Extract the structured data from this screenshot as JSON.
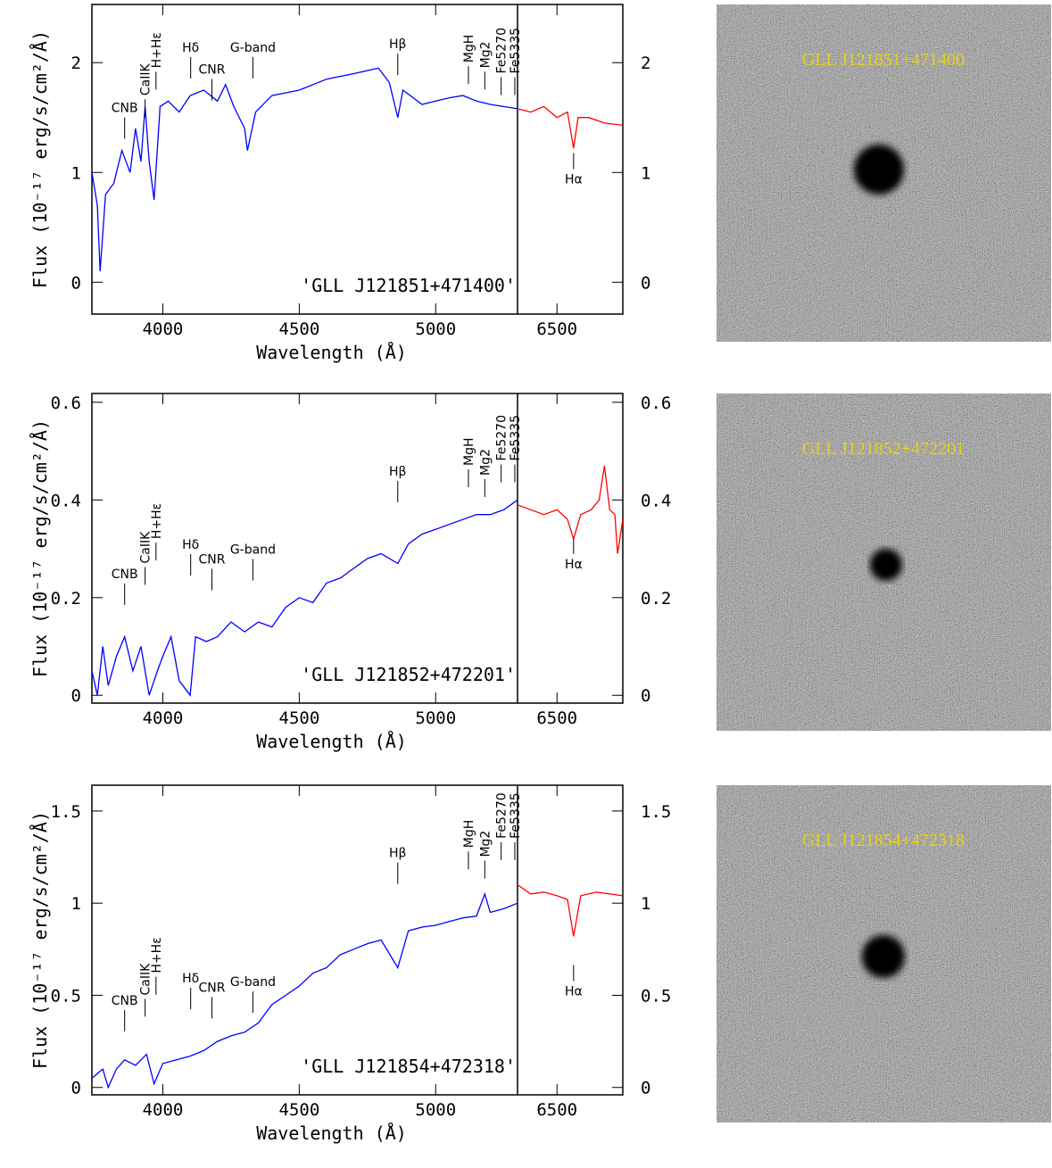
{
  "chart_data": [
    {
      "type": "line",
      "xlabel": "Wavelength (Å)",
      "ylabel": "Flux (10⁻¹⁷ erg/s/cm²/Å)",
      "label": "'GLL J121851+471400'",
      "image_title": "GLL J121851+471400",
      "xlim": [
        3740,
        5300
      ],
      "xticks": [
        4000,
        4500,
        5000
      ],
      "x2lim": [
        6350,
        6750
      ],
      "x2ticks": [
        6500
      ],
      "ylim": [
        -0.29,
        2.53
      ],
      "yticks": [
        0,
        1,
        2
      ],
      "series": [
        {
          "color": "#0000ff",
          "x": [
            3740,
            3760,
            3770,
            3790,
            3820,
            3850,
            3880,
            3900,
            3920,
            3935,
            3950,
            3968,
            3990,
            4020,
            4060,
            4100,
            4150,
            4200,
            4230,
            4260,
            4300,
            4310,
            4340,
            4400,
            4500,
            4600,
            4700,
            4790,
            4830,
            4861,
            4880,
            4950,
            5000,
            5050,
            5100,
            5150,
            5200,
            5300
          ],
          "values": [
            1.0,
            0.7,
            0.1,
            0.8,
            0.9,
            1.2,
            1.0,
            1.4,
            1.1,
            1.6,
            1.1,
            0.75,
            1.6,
            1.65,
            1.55,
            1.7,
            1.75,
            1.65,
            1.8,
            1.6,
            1.4,
            1.2,
            1.55,
            1.7,
            1.75,
            1.85,
            1.9,
            1.95,
            1.82,
            1.5,
            1.75,
            1.62,
            1.65,
            1.68,
            1.7,
            1.65,
            1.62,
            1.58
          ]
        },
        {
          "color": "#ff0000",
          "axis": "x2",
          "x": [
            6350,
            6400,
            6450,
            6500,
            6540,
            6563,
            6580,
            6620,
            6680,
            6750
          ],
          "values": [
            1.58,
            1.55,
            1.6,
            1.5,
            1.55,
            1.22,
            1.5,
            1.5,
            1.45,
            1.43
          ]
        }
      ],
      "annotations": [
        {
          "text": "CNB",
          "x": 3860,
          "y": 1.55
        },
        {
          "text": "CaIIK",
          "x": 3935,
          "y": 1.7,
          "vertical": true
        },
        {
          "text": "H+Hε",
          "x": 3975,
          "y": 1.95,
          "vertical": true
        },
        {
          "text": "Hδ",
          "x": 4102,
          "y": 2.1
        },
        {
          "text": "CNR",
          "x": 4180,
          "y": 1.9
        },
        {
          "text": "G-band",
          "x": 4330,
          "y": 2.1
        },
        {
          "text": "Hβ",
          "x": 4861,
          "y": 2.13
        },
        {
          "text": "MgH",
          "x": 5120,
          "y": 2.0,
          "vertical": true
        },
        {
          "text": "Mg2",
          "x": 5180,
          "y": 1.95,
          "vertical": true
        },
        {
          "text": "Fe5270",
          "x": 5240,
          "y": 1.9,
          "vertical": true
        },
        {
          "text": "Fe5335",
          "x": 5290,
          "y": 1.9,
          "vertical": true
        },
        {
          "text": "Hα",
          "x": 6563,
          "y": 0.9,
          "axis": "x2"
        }
      ]
    },
    {
      "type": "line",
      "xlabel": "Wavelength (Å)",
      "ylabel": "Flux (10⁻¹⁷ erg/s/cm²/Å)",
      "label": "'GLL J121852+472201'",
      "image_title": "GLL J121852+472201",
      "xlim": [
        3740,
        5300
      ],
      "xticks": [
        4000,
        4500,
        5000
      ],
      "x2lim": [
        6350,
        6750
      ],
      "x2ticks": [
        6500
      ],
      "ylim": [
        -0.016,
        0.618
      ],
      "yticks": [
        0,
        0.2,
        0.4,
        0.6
      ],
      "series": [
        {
          "color": "#0000ff",
          "x": [
            3740,
            3760,
            3780,
            3800,
            3830,
            3860,
            3890,
            3920,
            3950,
            3980,
            4000,
            4030,
            4060,
            4100,
            4120,
            4160,
            4200,
            4250,
            4300,
            4350,
            4400,
            4450,
            4500,
            4550,
            4600,
            4650,
            4700,
            4750,
            4800,
            4861,
            4900,
            4950,
            5000,
            5050,
            5100,
            5150,
            5200,
            5250,
            5300
          ],
          "values": [
            0.05,
            0.0,
            0.1,
            0.02,
            0.08,
            0.12,
            0.05,
            0.1,
            0.0,
            0.05,
            0.08,
            0.12,
            0.03,
            0.0,
            0.12,
            0.11,
            0.12,
            0.15,
            0.13,
            0.15,
            0.14,
            0.18,
            0.2,
            0.19,
            0.23,
            0.24,
            0.26,
            0.28,
            0.29,
            0.27,
            0.31,
            0.33,
            0.34,
            0.35,
            0.36,
            0.37,
            0.37,
            0.38,
            0.4
          ]
        },
        {
          "color": "#ff0000",
          "axis": "x2",
          "x": [
            6350,
            6400,
            6450,
            6500,
            6540,
            6563,
            6590,
            6630,
            6660,
            6680,
            6700,
            6720,
            6730,
            6750
          ],
          "values": [
            0.39,
            0.38,
            0.37,
            0.38,
            0.36,
            0.32,
            0.37,
            0.38,
            0.4,
            0.47,
            0.38,
            0.37,
            0.29,
            0.36
          ]
        }
      ],
      "annotations": [
        {
          "text": "CNB",
          "x": 3860,
          "y": 0.24
        },
        {
          "text": "CaIIK",
          "x": 3935,
          "y": 0.27,
          "vertical": true
        },
        {
          "text": "H+Hε",
          "x": 3975,
          "y": 0.32,
          "vertical": true
        },
        {
          "text": "Hδ",
          "x": 4102,
          "y": 0.3
        },
        {
          "text": "CNR",
          "x": 4180,
          "y": 0.27
        },
        {
          "text": "G-band",
          "x": 4330,
          "y": 0.29
        },
        {
          "text": "Hβ",
          "x": 4861,
          "y": 0.45
        },
        {
          "text": "MgH",
          "x": 5120,
          "y": 0.47,
          "vertical": true
        },
        {
          "text": "Mg2",
          "x": 5180,
          "y": 0.45,
          "vertical": true
        },
        {
          "text": "Fe5270",
          "x": 5240,
          "y": 0.48,
          "vertical": true
        },
        {
          "text": "Fe5335",
          "x": 5290,
          "y": 0.48,
          "vertical": true
        },
        {
          "text": "Hα",
          "x": 6563,
          "y": 0.26,
          "axis": "x2"
        }
      ]
    },
    {
      "type": "line",
      "xlabel": "Wavelength (Å)",
      "ylabel": "Flux (10⁻¹⁷ erg/s/cm²/Å)",
      "label": "'GLL J121854+472318'",
      "image_title": "GLL J121854+472318",
      "xlim": [
        3740,
        5300
      ],
      "xticks": [
        4000,
        4500,
        5000
      ],
      "x2lim": [
        6350,
        6750
      ],
      "x2ticks": [
        6500
      ],
      "ylim": [
        -0.04,
        1.64
      ],
      "yticks": [
        0,
        0.5,
        1,
        1.5
      ],
      "series": [
        {
          "color": "#0000ff",
          "x": [
            3740,
            3780,
            3800,
            3830,
            3860,
            3900,
            3940,
            3968,
            4000,
            4050,
            4100,
            4150,
            4200,
            4250,
            4300,
            4350,
            4400,
            4450,
            4500,
            4550,
            4600,
            4650,
            4700,
            4750,
            4800,
            4861,
            4900,
            4950,
            5000,
            5050,
            5100,
            5150,
            5180,
            5200,
            5250,
            5300
          ],
          "values": [
            0.05,
            0.1,
            0.0,
            0.1,
            0.15,
            0.12,
            0.18,
            0.02,
            0.13,
            0.15,
            0.17,
            0.2,
            0.25,
            0.28,
            0.3,
            0.35,
            0.45,
            0.5,
            0.55,
            0.62,
            0.65,
            0.72,
            0.75,
            0.78,
            0.8,
            0.65,
            0.85,
            0.87,
            0.88,
            0.9,
            0.92,
            0.93,
            1.05,
            0.95,
            0.97,
            1.0
          ]
        },
        {
          "color": "#ff0000",
          "axis": "x2",
          "x": [
            6350,
            6400,
            6450,
            6500,
            6540,
            6563,
            6590,
            6650,
            6700,
            6750
          ],
          "values": [
            1.1,
            1.05,
            1.06,
            1.04,
            1.02,
            0.82,
            1.04,
            1.06,
            1.05,
            1.04
          ]
        }
      ],
      "annotations": [
        {
          "text": "CNB",
          "x": 3860,
          "y": 0.45
        },
        {
          "text": "CaIIK",
          "x": 3935,
          "y": 0.5,
          "vertical": true
        },
        {
          "text": "H+Hε",
          "x": 3975,
          "y": 0.62,
          "vertical": true
        },
        {
          "text": "Hδ",
          "x": 4102,
          "y": 0.57
        },
        {
          "text": "CNR",
          "x": 4180,
          "y": 0.52
        },
        {
          "text": "G-band",
          "x": 4330,
          "y": 0.55
        },
        {
          "text": "Hβ",
          "x": 4861,
          "y": 1.25
        },
        {
          "text": "MgH",
          "x": 5120,
          "y": 1.3,
          "vertical": true
        },
        {
          "text": "Mg2",
          "x": 5180,
          "y": 1.25,
          "vertical": true
        },
        {
          "text": "Fe5270",
          "x": 5240,
          "y": 1.35,
          "vertical": true
        },
        {
          "text": "Fe5335",
          "x": 5290,
          "y": 1.35,
          "vertical": true
        },
        {
          "text": "Hα",
          "x": 6563,
          "y": 0.5,
          "axis": "x2"
        }
      ]
    }
  ]
}
